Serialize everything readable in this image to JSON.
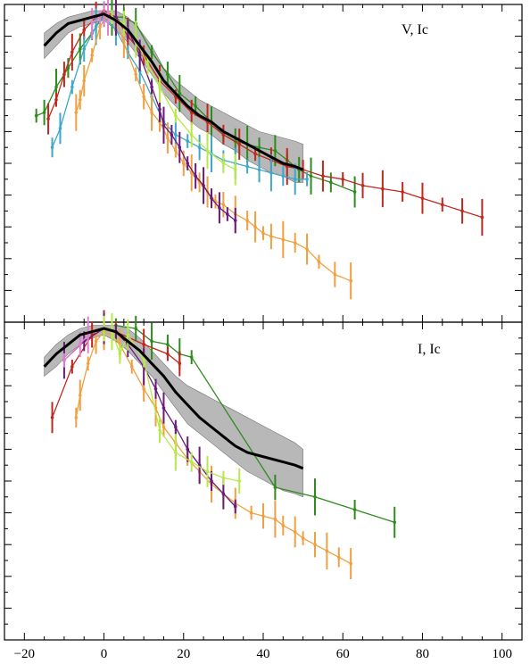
{
  "chart_data": [
    {
      "type": "line",
      "panel_label": "V, Ic",
      "xlim": [
        -25,
        105
      ],
      "ylim": [
        0,
        10
      ],
      "xticks": [
        -20,
        0,
        20,
        40,
        60,
        80,
        100
      ],
      "grid": false,
      "template_band": {
        "color": "#a0a0a0",
        "x": [
          -15,
          -12,
          -9,
          -6,
          -3,
          0,
          3,
          6,
          9,
          12,
          15,
          18,
          21,
          24,
          27,
          30,
          33,
          36,
          39,
          42,
          45,
          48,
          50
        ],
        "lower": [
          8.3,
          8.7,
          9.1,
          9.3,
          9.4,
          9.5,
          9.2,
          8.8,
          8.3,
          7.8,
          7.2,
          6.8,
          6.4,
          6.1,
          5.9,
          5.6,
          5.4,
          5.1,
          4.9,
          4.7,
          4.6,
          4.4,
          4.4
        ],
        "upper": [
          9.1,
          9.4,
          9.6,
          9.7,
          9.8,
          9.8,
          9.8,
          9.6,
          9.2,
          8.7,
          8.0,
          7.6,
          7.3,
          7.0,
          6.8,
          6.6,
          6.4,
          6.2,
          6.0,
          5.9,
          5.8,
          5.7,
          5.6
        ]
      },
      "template_mean": {
        "color": "#000000",
        "x": [
          -15,
          -12,
          -9,
          -6,
          -3,
          0,
          3,
          6,
          9,
          12,
          15,
          18,
          21,
          24,
          27,
          30,
          33,
          36,
          39,
          42,
          45,
          48,
          50
        ],
        "y": [
          8.7,
          9.1,
          9.4,
          9.5,
          9.6,
          9.7,
          9.5,
          9.2,
          8.7,
          8.2,
          7.6,
          7.2,
          6.8,
          6.5,
          6.3,
          6.0,
          5.8,
          5.6,
          5.4,
          5.2,
          5.0,
          4.9,
          4.8
        ]
      },
      "series": [
        {
          "color": "#2e8b1e",
          "x": [
            -17,
            -15,
            -12,
            -9,
            -6,
            -3,
            0,
            2,
            5,
            8,
            12,
            16,
            19,
            23,
            27,
            30,
            33,
            36,
            39,
            43,
            46,
            49,
            52,
            57,
            63
          ],
          "y": [
            6.5,
            6.6,
            7.4,
            8.0,
            8.6,
            9.1,
            9.7,
            9.6,
            9.6,
            9.4,
            8.5,
            7.8,
            7.2,
            6.8,
            6.3,
            5.9,
            5.7,
            5.6,
            5.5,
            5.4,
            5.1,
            4.8,
            4.6,
            4.4,
            4.1
          ]
        },
        {
          "color": "#c0281e",
          "x": [
            -14,
            -12,
            -10,
            -8,
            -5,
            -2,
            0,
            3,
            6,
            10,
            14,
            18,
            22,
            26,
            30,
            34,
            38,
            42,
            46,
            50,
            55,
            60,
            65,
            70,
            75,
            80,
            85,
            90,
            95
          ],
          "y": [
            6.4,
            7.0,
            7.8,
            8.5,
            9.2,
            9.6,
            9.8,
            9.6,
            9.0,
            8.4,
            7.6,
            7.1,
            6.6,
            6.3,
            5.9,
            5.6,
            5.3,
            5.1,
            4.9,
            4.8,
            4.6,
            4.5,
            4.3,
            4.2,
            4.1,
            3.9,
            3.7,
            3.5,
            3.3
          ]
        },
        {
          "color": "#3fa8c8",
          "x": [
            -13,
            -11,
            -8,
            -5,
            -2,
            0,
            3,
            6,
            9,
            12,
            15,
            18,
            21,
            24,
            27,
            30,
            33,
            36,
            39,
            42,
            45,
            48,
            51
          ],
          "y": [
            5.5,
            6.1,
            7.4,
            8.6,
            9.3,
            9.6,
            9.2,
            8.5,
            7.9,
            7.1,
            6.3,
            5.9,
            5.7,
            5.5,
            5.3,
            5.1,
            5.0,
            4.9,
            4.8,
            4.7,
            4.6,
            4.5,
            4.5
          ]
        },
        {
          "color": "#f0a040",
          "x": [
            -7,
            -6,
            -5,
            -3,
            -1,
            1,
            3,
            5,
            8,
            10,
            12,
            14,
            16,
            18,
            20,
            22,
            24,
            26,
            28,
            30,
            33,
            36,
            38,
            40,
            42,
            45,
            48,
            51,
            54,
            58,
            62
          ],
          "y": [
            6.6,
            7.0,
            7.6,
            8.4,
            9.3,
            9.7,
            9.5,
            8.8,
            7.8,
            7.1,
            6.6,
            6.3,
            5.8,
            5.4,
            5.0,
            4.7,
            4.4,
            4.1,
            3.8,
            3.7,
            3.4,
            3.2,
            3.0,
            2.8,
            2.7,
            2.6,
            2.5,
            2.3,
            1.9,
            1.5,
            1.3
          ]
        },
        {
          "color": "#6a1a7a",
          "x": [
            0,
            3,
            6,
            9,
            12,
            14,
            15,
            17,
            19,
            21,
            23,
            25,
            27,
            29,
            31,
            33
          ],
          "y": [
            9.7,
            9.6,
            9.2,
            8.4,
            7.4,
            6.7,
            6.2,
            5.9,
            5.5,
            5.0,
            4.6,
            4.3,
            3.9,
            3.6,
            3.4,
            3.2
          ]
        },
        {
          "color": "#b7e94a",
          "x": [
            2,
            5,
            8,
            11,
            14,
            18,
            22,
            26,
            30,
            33
          ],
          "y": [
            9.6,
            9.4,
            8.9,
            8.1,
            7.4,
            6.5,
            5.9,
            5.4,
            5.0,
            4.8
          ]
        },
        {
          "color": "#e080d0",
          "x": [
            -3,
            -1,
            0,
            1
          ],
          "y": [
            9.4,
            9.6,
            9.7,
            9.6
          ]
        }
      ]
    },
    {
      "type": "line",
      "panel_label": "I, Ic",
      "xlim": [
        -25,
        105
      ],
      "ylim": [
        0,
        10
      ],
      "xticks": [
        -20,
        0,
        20,
        40,
        60,
        80,
        100
      ],
      "grid": false,
      "template_band": {
        "color": "#a0a0a0",
        "x": [
          -15,
          -12,
          -9,
          -6,
          -3,
          0,
          3,
          6,
          9,
          12,
          15,
          18,
          21,
          24,
          27,
          30,
          33,
          36,
          39,
          42,
          45,
          48,
          50
        ],
        "lower": [
          8.3,
          8.6,
          9.0,
          9.3,
          9.5,
          9.6,
          9.4,
          9.1,
          8.7,
          8.3,
          7.8,
          7.3,
          6.8,
          6.5,
          6.2,
          5.9,
          5.6,
          5.3,
          5.1,
          4.9,
          4.7,
          4.6,
          4.5
        ],
        "upper": [
          8.9,
          9.3,
          9.6,
          9.8,
          9.9,
          9.9,
          9.9,
          9.8,
          9.5,
          9.1,
          8.7,
          8.3,
          8.0,
          7.8,
          7.6,
          7.4,
          7.2,
          7.0,
          6.8,
          6.6,
          6.4,
          6.2,
          6.0
        ]
      },
      "template_mean": {
        "color": "#000000",
        "x": [
          -15,
          -12,
          -9,
          -6,
          -3,
          0,
          3,
          6,
          9,
          12,
          15,
          18,
          21,
          24,
          27,
          30,
          33,
          36,
          39,
          42,
          45,
          48,
          50
        ],
        "y": [
          8.6,
          9.0,
          9.3,
          9.6,
          9.7,
          9.8,
          9.7,
          9.4,
          9.1,
          8.7,
          8.3,
          7.8,
          7.4,
          7.0,
          6.7,
          6.4,
          6.1,
          5.9,
          5.8,
          5.7,
          5.6,
          5.5,
          5.4
        ]
      },
      "series": [
        {
          "color": "#2e8b1e",
          "x": [
            3,
            8,
            12,
            16,
            19,
            22,
            43,
            53,
            63,
            73
          ],
          "y": [
            9.9,
            9.8,
            9.4,
            9.3,
            9.0,
            8.9,
            4.8,
            4.5,
            4.1,
            3.7
          ]
        },
        {
          "color": "#c0281e",
          "x": [
            -13,
            -8,
            -3,
            0,
            3,
            10,
            16,
            19
          ],
          "y": [
            7.0,
            8.6,
            9.6,
            9.8,
            9.7,
            9.3,
            9.0,
            8.7
          ]
        },
        {
          "color": "#f0a040",
          "x": [
            -7,
            -6,
            -4,
            -2,
            0,
            2,
            4,
            7,
            10,
            13,
            15,
            18,
            21,
            24,
            27,
            30,
            33,
            37,
            40,
            43,
            45,
            48,
            50,
            53,
            56,
            59,
            62
          ],
          "y": [
            7.0,
            7.7,
            8.7,
            9.4,
            9.7,
            9.6,
            9.3,
            8.6,
            7.9,
            7.3,
            6.7,
            6.2,
            5.7,
            5.3,
            4.9,
            4.6,
            4.3,
            4.0,
            3.9,
            3.8,
            3.6,
            3.4,
            3.2,
            3.0,
            2.8,
            2.6,
            2.4
          ]
        },
        {
          "color": "#6a1a7a",
          "x": [
            -10,
            -5,
            0,
            3,
            6,
            10,
            13,
            15,
            18,
            21,
            24,
            27,
            30,
            33
          ],
          "y": [
            8.8,
            9.4,
            9.8,
            9.7,
            9.3,
            8.6,
            7.9,
            7.3,
            6.7,
            6.0,
            5.5,
            5.0,
            4.6,
            4.2
          ]
        },
        {
          "color": "#b7e94a",
          "x": [
            0,
            2,
            4,
            6,
            10,
            14,
            18,
            22,
            26,
            30,
            34
          ],
          "y": [
            9.8,
            9.7,
            9.0,
            9.6,
            8.8,
            6.6,
            5.9,
            5.6,
            5.3,
            5.1,
            5.0
          ]
        },
        {
          "color": "#e080d0",
          "x": [
            -10,
            -6,
            -4
          ],
          "y": [
            8.8,
            9.3,
            9.6
          ]
        }
      ]
    }
  ]
}
